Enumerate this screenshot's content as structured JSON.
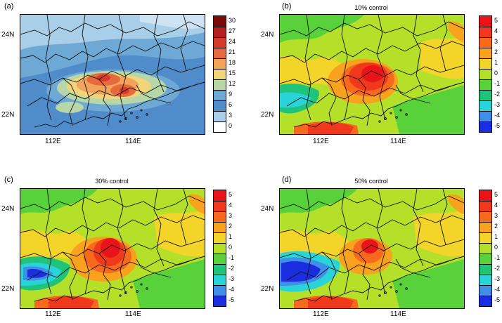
{
  "panels": [
    {
      "label": "(a)",
      "title": "",
      "y_ticks": [
        "24N",
        "22N"
      ],
      "x_ticks": [
        "112E",
        "114E"
      ],
      "colorbar": [
        "30",
        "27",
        "24",
        "21",
        "18",
        "15",
        "12",
        "9",
        "6",
        "3",
        "0"
      ],
      "colors": [
        "#7a0a0a",
        "#b51e1e",
        "#d63b2a",
        "#e66a3d",
        "#f0a55a",
        "#f2d57a",
        "#b7d7a8",
        "#6ea9d6",
        "#4f8cc9",
        "#a9cfe8",
        "#ffffff"
      ]
    },
    {
      "label": "(b)",
      "title": "10% control",
      "y_ticks": [
        "24N",
        "22N"
      ],
      "x_ticks": [
        "112E",
        "114E"
      ],
      "colorbar": [
        "5",
        "4",
        "3",
        "2",
        "1",
        "0",
        "-1",
        "-2",
        "-3",
        "-4",
        "-5"
      ],
      "colors": [
        "#e8141a",
        "#f0391c",
        "#f76a1e",
        "#f8a21e",
        "#f3d52a",
        "#b4e02a",
        "#58d13a",
        "#1fc37a",
        "#29d4d8",
        "#3f8ee8",
        "#1a2ee0"
      ]
    },
    {
      "label": "(c)",
      "title": "30% control",
      "y_ticks": [
        "24N",
        "22N"
      ],
      "x_ticks": [
        "112E",
        "114E"
      ],
      "colorbar": [
        "5",
        "4",
        "3",
        "2",
        "1",
        "0",
        "-1",
        "-2",
        "-3",
        "-4",
        "-5"
      ],
      "colors": [
        "#e8141a",
        "#f0391c",
        "#f76a1e",
        "#f8a21e",
        "#f3d52a",
        "#b4e02a",
        "#58d13a",
        "#1fc37a",
        "#29d4d8",
        "#3f8ee8",
        "#1a2ee0"
      ]
    },
    {
      "label": "(d)",
      "title": "50% control",
      "y_ticks": [
        "24N",
        "22N"
      ],
      "x_ticks": [
        "112E",
        "114E"
      ],
      "colorbar": [
        "5",
        "4",
        "3",
        "2",
        "1",
        "0",
        "-1",
        "-2",
        "-3",
        "-4",
        "-5"
      ],
      "colors": [
        "#e8141a",
        "#f0391c",
        "#f76a1e",
        "#f8a21e",
        "#f3d52a",
        "#b4e02a",
        "#58d13a",
        "#1fc37a",
        "#29d4d8",
        "#3f8ee8",
        "#1a2ee0"
      ]
    }
  ]
}
